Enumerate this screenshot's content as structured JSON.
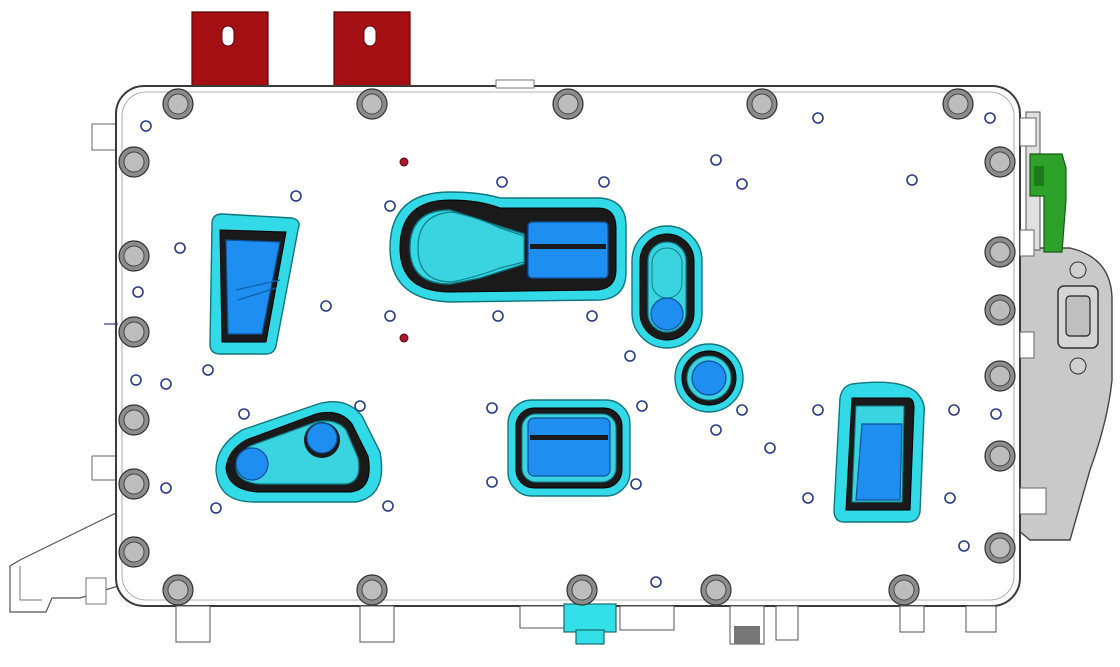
{
  "title": "",
  "view": "cad-top-view",
  "colors": {
    "background": "#ffffff",
    "housing": "#ffffff",
    "outline": "#3a3a3a",
    "bolt_outer": "#8c8c8c",
    "bolt_inner": "#bdbdbd",
    "small_hole": "#2a3a8a",
    "red_hole": "#b0142d",
    "bracket_red": "#a40f14",
    "connector_green": "#2ea12a",
    "connector_grey": "#c9c9c9",
    "pad_cyan": "#32d9e6",
    "pad_blue": "#1e8ff0",
    "pad_dark": "#1a1a1a",
    "coolant_port": "#33e0e8"
  },
  "components": {
    "mounting_brackets": [
      "bracket-left",
      "bracket-right"
    ],
    "side_connector": "connector-housing",
    "coolant_fitting": "coolant-port",
    "cooling_pads": [
      "pad-trapezoid-left",
      "pad-keyhole",
      "pad-slot-vertical",
      "pad-round",
      "pad-triangular",
      "pad-rounded-square",
      "pad-trapezoid-right"
    ]
  }
}
